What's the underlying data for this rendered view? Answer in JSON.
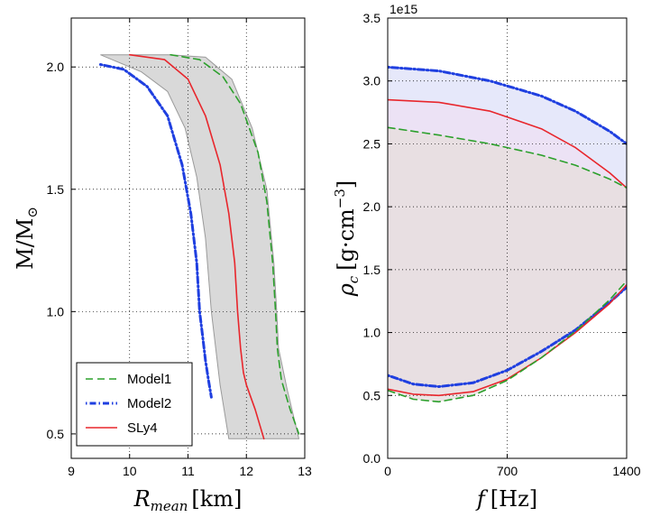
{
  "chart_data": [
    {
      "type": "line",
      "panel": "left",
      "xlabel": {
        "main": "R",
        "sub": "mean",
        "unit": "[km]"
      },
      "ylabel": {
        "main": "M/M",
        "sub": "⊙"
      },
      "xlim": [
        9,
        13
      ],
      "ylim": [
        0.4,
        2.2
      ],
      "xticks": [
        9,
        10,
        11,
        12,
        13
      ],
      "yticks": [
        0.5,
        1.0,
        1.5,
        2.0
      ],
      "xtick_labels": [
        "9",
        "10",
        "11",
        "12",
        "13"
      ],
      "ytick_labels": [
        "0.5",
        "1.0",
        "1.5",
        "2.0"
      ],
      "grid": true,
      "legend": {
        "placement": "bottom-left",
        "entries": [
          {
            "label": "Model1",
            "color": "#2ca02c",
            "style": "dashed"
          },
          {
            "label": "Model2",
            "color": "#1f3fe0",
            "style": "dashdot"
          },
          {
            "label": "SLy4",
            "color": "#e8262c",
            "style": "solid"
          }
        ]
      },
      "band": {
        "color": "#d9d9d9",
        "left_edge": [
          [
            11.7,
            0.48
          ],
          [
            11.55,
            0.7
          ],
          [
            11.4,
            1.0
          ],
          [
            11.3,
            1.3
          ],
          [
            11.15,
            1.55
          ],
          [
            10.95,
            1.75
          ],
          [
            10.65,
            1.9
          ],
          [
            10.2,
            1.98
          ],
          [
            9.5,
            2.05
          ]
        ],
        "right_edge": [
          [
            10.7,
            2.05
          ],
          [
            11.3,
            2.04
          ],
          [
            11.75,
            1.95
          ],
          [
            12.1,
            1.75
          ],
          [
            12.35,
            1.5
          ],
          [
            12.47,
            1.2
          ],
          [
            12.52,
            1.0
          ],
          [
            12.55,
            0.85
          ],
          [
            12.7,
            0.68
          ],
          [
            12.9,
            0.48
          ]
        ]
      },
      "series": [
        {
          "name": "Model1",
          "color": "#2ca02c",
          "style": "dashed",
          "x": [
            10.7,
            11.2,
            11.6,
            11.9,
            12.2,
            12.35,
            12.45,
            12.5,
            12.53,
            12.6,
            12.75,
            12.9
          ],
          "y": [
            2.05,
            2.03,
            1.96,
            1.85,
            1.65,
            1.45,
            1.2,
            1.0,
            0.85,
            0.72,
            0.6,
            0.5
          ]
        },
        {
          "name": "Model2",
          "color": "#1f3fe0",
          "style": "dashdot",
          "x": [
            9.5,
            9.9,
            10.3,
            10.65,
            10.9,
            11.05,
            11.15,
            11.2,
            11.25,
            11.3,
            11.35,
            11.4
          ],
          "y": [
            2.01,
            1.99,
            1.92,
            1.8,
            1.6,
            1.4,
            1.2,
            1.0,
            0.9,
            0.8,
            0.72,
            0.65
          ]
        },
        {
          "name": "SLy4",
          "color": "#e8262c",
          "style": "solid",
          "x": [
            10.0,
            10.6,
            11.0,
            11.3,
            11.55,
            11.7,
            11.8,
            11.85,
            11.9,
            11.95,
            12.0,
            12.15,
            12.3
          ],
          "y": [
            2.05,
            2.03,
            1.95,
            1.8,
            1.6,
            1.4,
            1.2,
            1.0,
            0.85,
            0.75,
            0.7,
            0.6,
            0.48
          ]
        }
      ]
    },
    {
      "type": "line",
      "panel": "right",
      "xlabel": {
        "main": "f",
        "unit": "[Hz]"
      },
      "ylabel": {
        "main": "ρ",
        "sub": "c",
        "unit_prefix": "[g·cm",
        "unit_exp": "−3",
        "unit_suffix": "]"
      },
      "y_offset_label": "1e15",
      "xlim": [
        0,
        1400
      ],
      "ylim": [
        0.0,
        3.5
      ],
      "xticks": [
        0,
        700,
        1400
      ],
      "yticks": [
        0.0,
        0.5,
        1.0,
        1.5,
        2.0,
        2.5,
        3.0,
        3.5
      ],
      "xtick_labels": [
        "0",
        "700",
        "1400"
      ],
      "ytick_labels": [
        "0.0",
        "0.5",
        "1.0",
        "1.5",
        "2.0",
        "2.5",
        "3.0",
        "3.5"
      ],
      "grid": true,
      "bands": [
        {
          "name": "Model2 band",
          "color": "#e6e8fa",
          "upper": {
            "x": [
              0,
              300,
              600,
              900,
              1100,
              1300,
              1400
            ],
            "y": [
              3.11,
              3.08,
              3.0,
              2.88,
              2.76,
              2.6,
              2.5
            ]
          },
          "lower": {
            "x": [
              0,
              150,
              300,
              500,
              700,
              900,
              1100,
              1300,
              1400
            ],
            "y": [
              0.66,
              0.59,
              0.57,
              0.6,
              0.7,
              0.85,
              1.02,
              1.24,
              1.36
            ]
          }
        },
        {
          "name": "SLy4 band",
          "color": "#f0dcf0",
          "opacity": 0.55,
          "upper": {
            "x": [
              0,
              300,
              600,
              900,
              1100,
              1300,
              1400
            ],
            "y": [
              2.85,
              2.83,
              2.76,
              2.62,
              2.47,
              2.27,
              2.15
            ]
          },
          "lower": {
            "x": [
              0,
              150,
              300,
              500,
              700,
              900,
              1100,
              1300,
              1400
            ],
            "y": [
              0.55,
              0.51,
              0.5,
              0.53,
              0.63,
              0.8,
              1.0,
              1.23,
              1.38
            ]
          }
        },
        {
          "name": "Model1 band",
          "color": "#e8dede",
          "opacity": 0.85,
          "upper": {
            "x": [
              0,
              300,
              600,
              900,
              1100,
              1300,
              1400
            ],
            "y": [
              2.63,
              2.57,
              2.5,
              2.41,
              2.33,
              2.22,
              2.15
            ]
          },
          "lower": {
            "x": [
              0,
              150,
              300,
              500,
              700,
              900,
              1100,
              1300,
              1400
            ],
            "y": [
              0.54,
              0.47,
              0.45,
              0.5,
              0.62,
              0.8,
              1.01,
              1.26,
              1.41
            ]
          }
        }
      ],
      "series": [
        {
          "name": "Model2 upper",
          "color": "#1f3fe0",
          "style": "dashdot",
          "x": [
            0,
            300,
            600,
            900,
            1100,
            1300,
            1400
          ],
          "y": [
            3.11,
            3.08,
            3.0,
            2.88,
            2.76,
            2.6,
            2.5
          ]
        },
        {
          "name": "Model2 lower",
          "color": "#1f3fe0",
          "style": "dashdot",
          "x": [
            0,
            150,
            300,
            500,
            700,
            900,
            1100,
            1300,
            1400
          ],
          "y": [
            0.66,
            0.59,
            0.57,
            0.6,
            0.7,
            0.85,
            1.02,
            1.24,
            1.36
          ]
        },
        {
          "name": "SLy4 upper",
          "color": "#e8262c",
          "style": "solid",
          "x": [
            0,
            300,
            600,
            900,
            1100,
            1300,
            1400
          ],
          "y": [
            2.85,
            2.83,
            2.76,
            2.62,
            2.47,
            2.27,
            2.15
          ]
        },
        {
          "name": "SLy4 lower",
          "color": "#e8262c",
          "style": "solid",
          "x": [
            0,
            150,
            300,
            500,
            700,
            900,
            1100,
            1300,
            1400
          ],
          "y": [
            0.55,
            0.51,
            0.5,
            0.53,
            0.63,
            0.8,
            1.0,
            1.23,
            1.38
          ]
        },
        {
          "name": "Model1 upper",
          "color": "#2ca02c",
          "style": "dashed",
          "x": [
            0,
            300,
            600,
            900,
            1100,
            1300,
            1400
          ],
          "y": [
            2.63,
            2.57,
            2.5,
            2.41,
            2.33,
            2.22,
            2.15
          ]
        },
        {
          "name": "Model1 lower",
          "color": "#2ca02c",
          "style": "dashed",
          "x": [
            0,
            150,
            300,
            500,
            700,
            900,
            1100,
            1300,
            1400
          ],
          "y": [
            0.54,
            0.47,
            0.45,
            0.5,
            0.62,
            0.8,
            1.01,
            1.26,
            1.41
          ]
        }
      ]
    }
  ]
}
